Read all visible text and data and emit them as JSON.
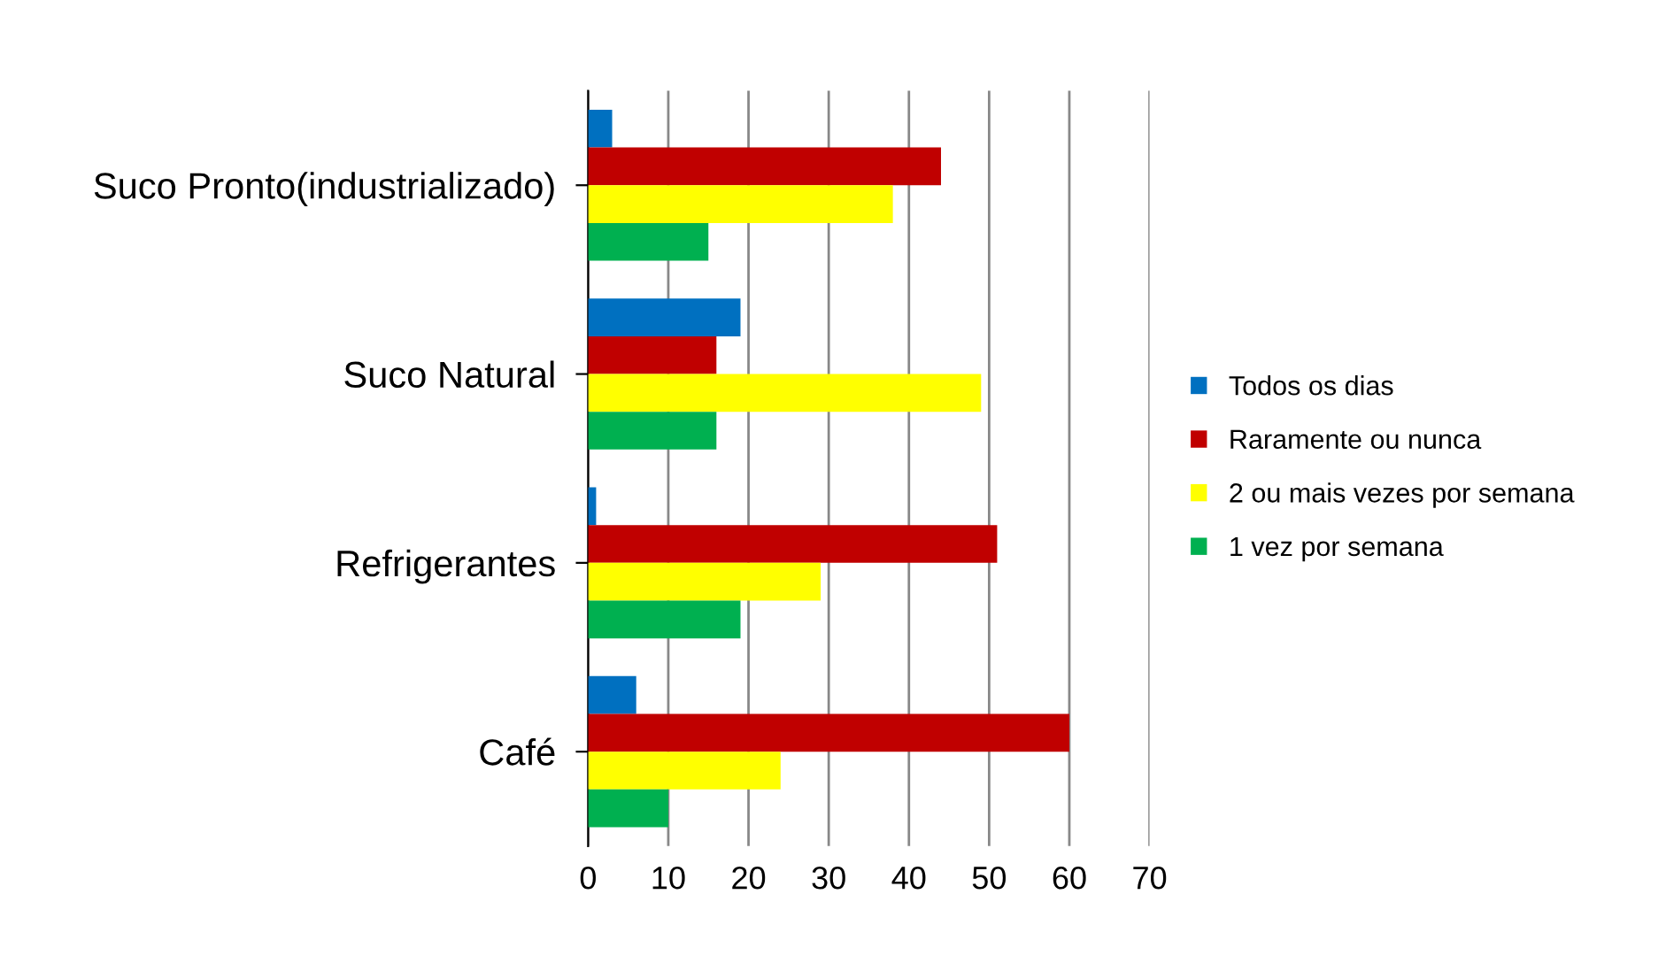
{
  "chart_data": {
    "type": "bar",
    "orientation": "horizontal",
    "categories": [
      "Suco Pronto(industrializado)",
      "Suco Natural",
      "Refrigerantes",
      "Café"
    ],
    "series": [
      {
        "name": "Todos os dias",
        "color": "#0070c0",
        "values": [
          3,
          19,
          1,
          6
        ]
      },
      {
        "name": "Raramente ou nunca",
        "color": "#c00000",
        "values": [
          44,
          16,
          51,
          60
        ]
      },
      {
        "name": "2 ou mais vezes por semana",
        "color": "#ffff00",
        "values": [
          38,
          49,
          29,
          24
        ]
      },
      {
        "name": "1 vez por semana",
        "color": "#00b050",
        "values": [
          15,
          16,
          19,
          10
        ]
      }
    ],
    "xlim": [
      0,
      70
    ],
    "xticks": [
      0,
      10,
      20,
      30,
      40,
      50,
      60,
      70
    ],
    "grid": "x",
    "legend": "right"
  }
}
